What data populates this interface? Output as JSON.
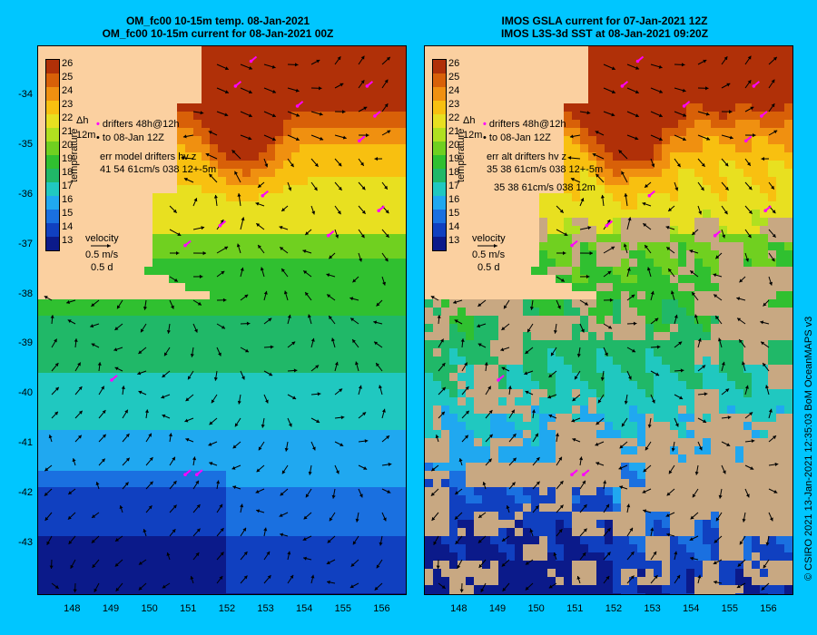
{
  "left_panel": {
    "title_line1": "OM_fc00 10-15m temp. 08-Jan-2021",
    "title_line2": "OM_fc00 10-15m current for 08-Jan-2021 00Z",
    "legend_drifters": "drifters 48h@12h",
    "legend_to": "to 08-Jan 12Z",
    "legend_err1": "err model drifters hv z",
    "legend_err2": "41 54 61cm/s 038 12+-5m",
    "legend_err3": "",
    "legend_symbol": "Δh",
    "legend_depth": "12m"
  },
  "right_panel": {
    "title_line1": "IMOS GSLA current for 07-Jan-2021 12Z",
    "title_line2": "IMOS L3S-3d SST at 08-Jan-2021 09:20Z",
    "legend_drifters": "drifters 48h@12h",
    "legend_to": "to 08-Jan 12Z",
    "legend_err1": "err alt drifters hv z",
    "legend_err2": "35 38 61cm/s 038 12+-5m",
    "legend_err3": "35 38 61cm/s 038 12m",
    "legend_symbol": "Δh",
    "legend_depth": "12m"
  },
  "colorbar": {
    "label": "temperature",
    "ticks": [
      "26",
      "25",
      "24",
      "23",
      "22",
      "21",
      "20",
      "19",
      "18",
      "17",
      "16",
      "15",
      "14",
      "13"
    ]
  },
  "velocity_legend": {
    "title": "velocity",
    "speed": "0.5 m/s",
    "duration": "0.5 d"
  },
  "axes": {
    "y_ticks": [
      "-34",
      "-35",
      "-36",
      "-37",
      "-38",
      "-39",
      "-40",
      "-41",
      "-42",
      "-43"
    ],
    "x_ticks": [
      "148",
      "149",
      "150",
      "151",
      "152",
      "153",
      "154",
      "155",
      "156"
    ],
    "lat_range": [
      -44,
      -33
    ],
    "lon_range": [
      147.1,
      156.6
    ]
  },
  "credit": "© CSIRO 2021  13-Jan-2021 12:35:03 BoM OceanMAPS v3",
  "colors": {
    "background": "#00c6ff",
    "land": "#fbd0a0",
    "cloud": "#c8a882",
    "drifter": "#ff00ff"
  }
}
